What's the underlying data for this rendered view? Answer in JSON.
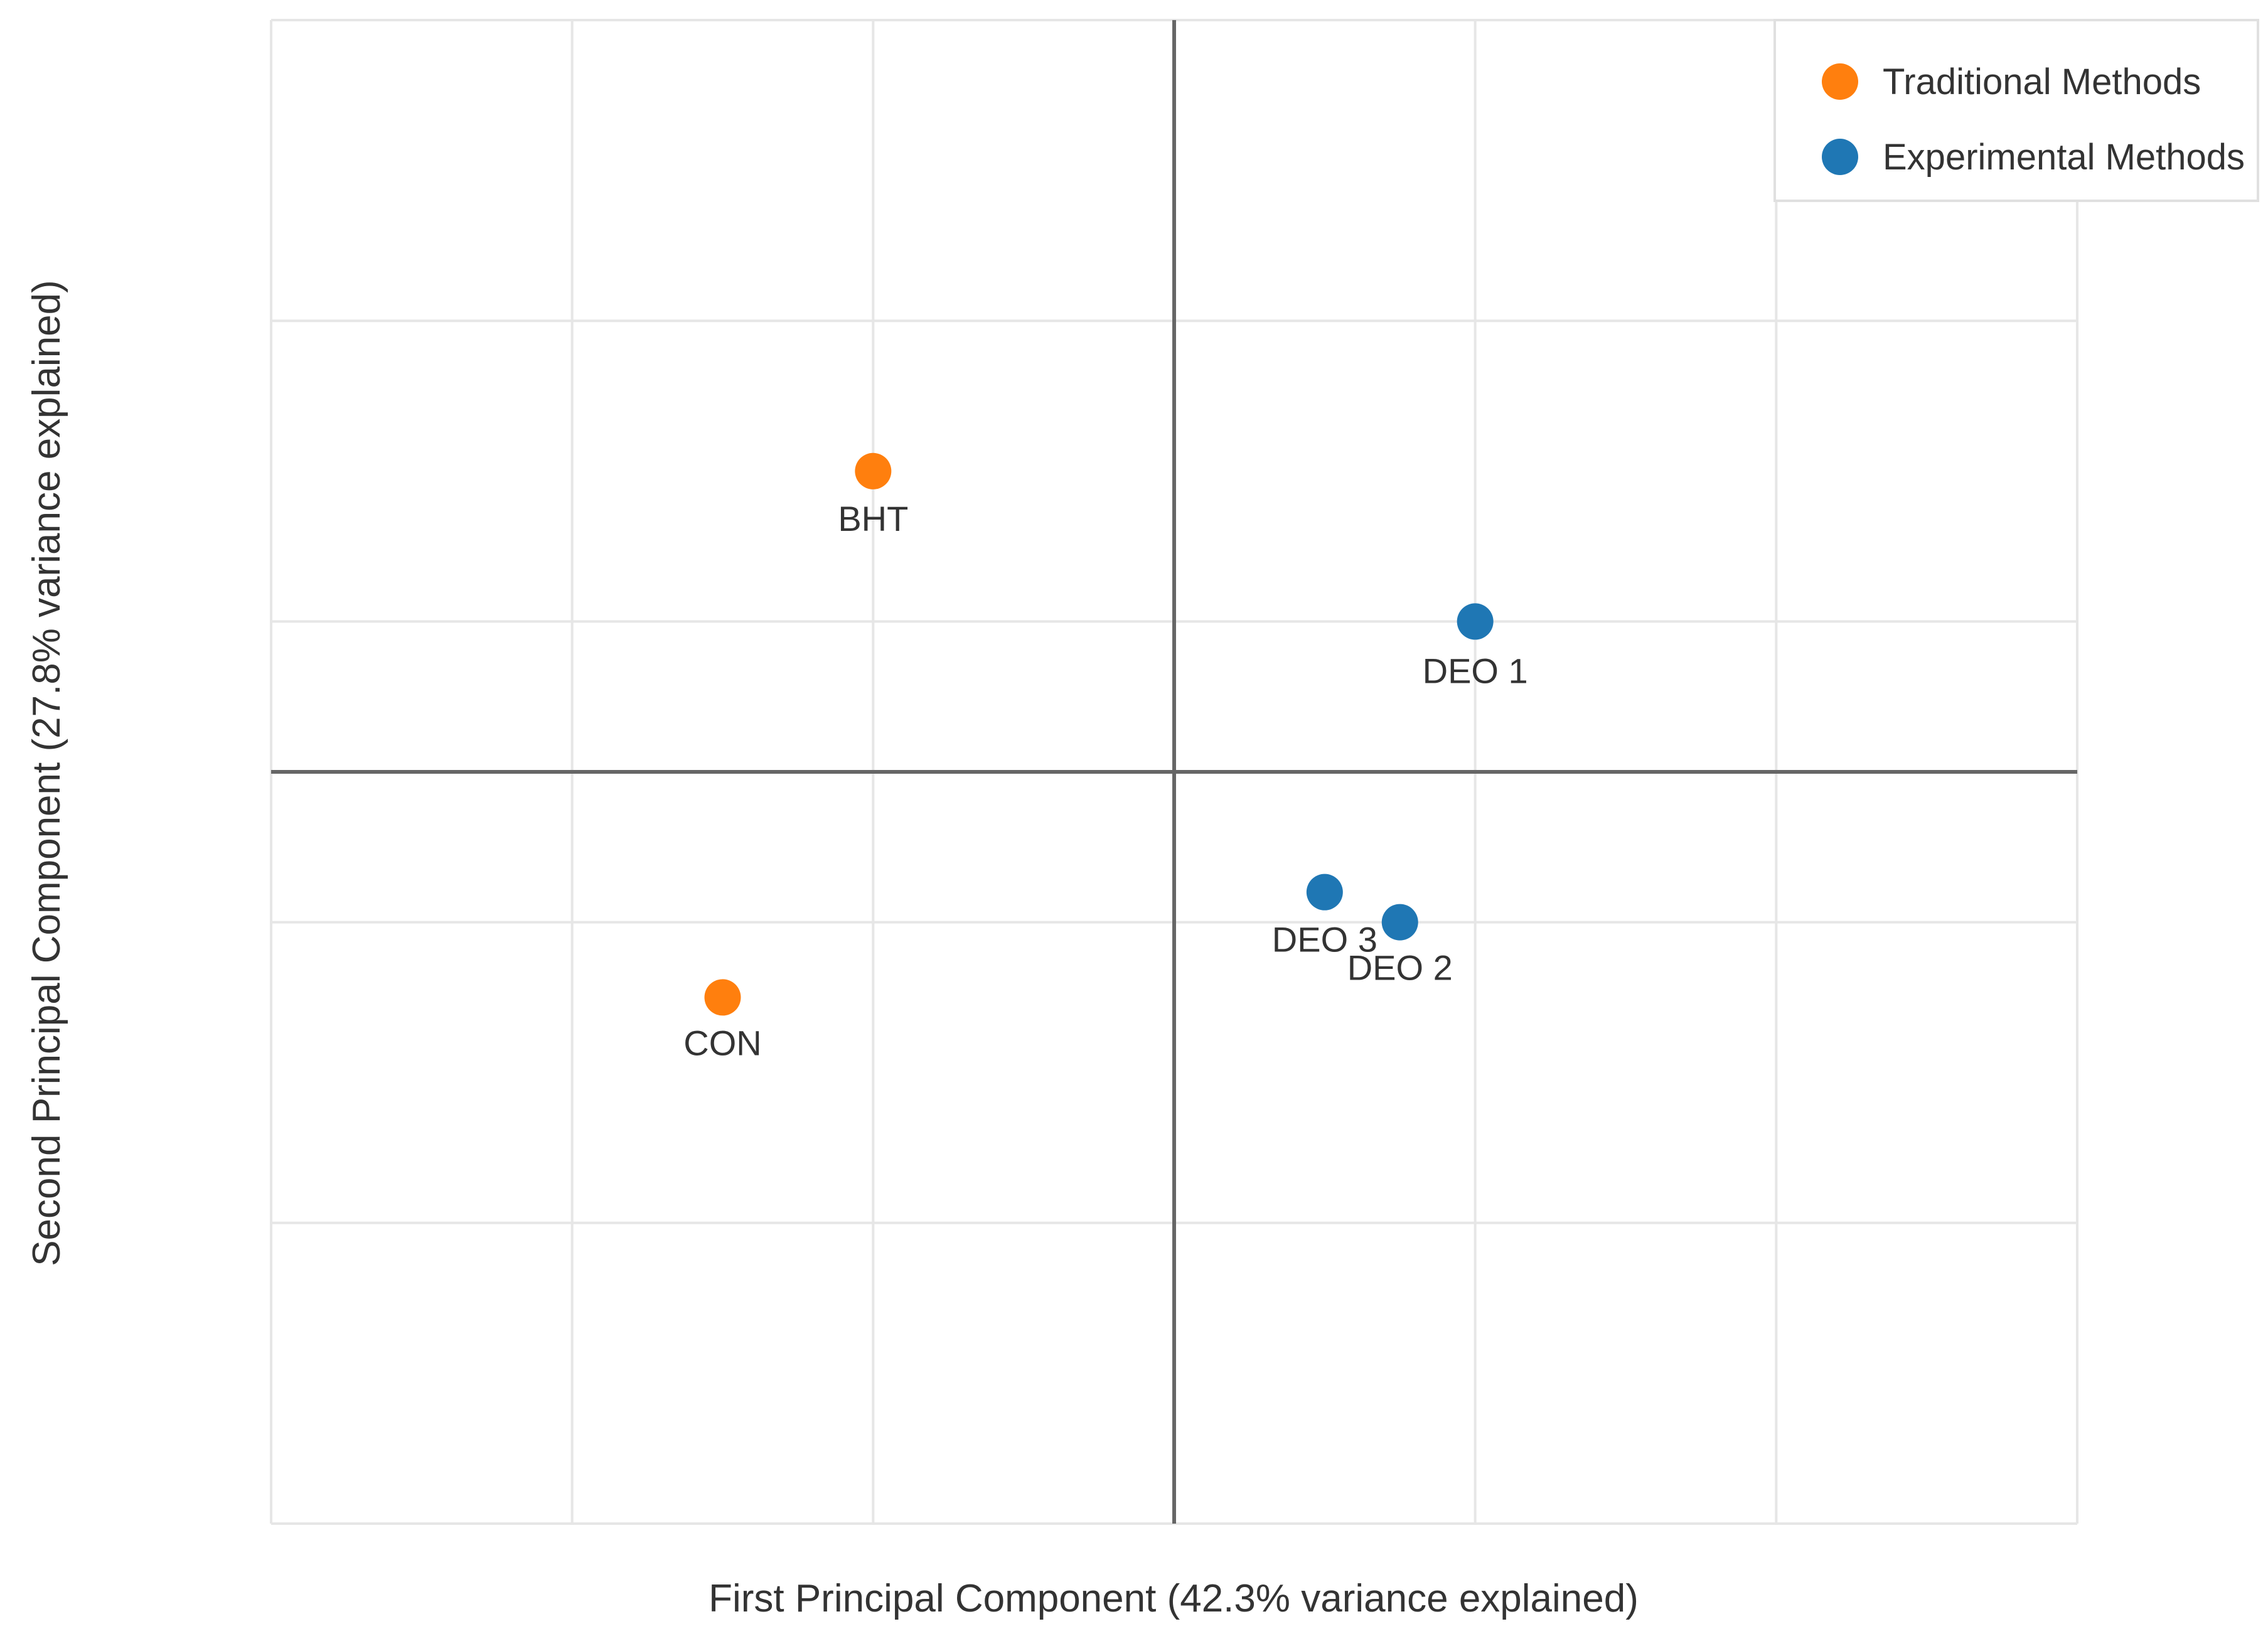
{
  "chart_data": {
    "type": "scatter",
    "title": "",
    "xlabel": "First Principal Component (42.3% variance explained)",
    "ylabel": "Second Principal Component (27.8% variance explained)",
    "xlim": [
      -3,
      3
    ],
    "ylim": [
      -2.5,
      2.5
    ],
    "x_gridlines": [
      -3,
      -2,
      -1,
      0,
      1,
      2,
      3
    ],
    "y_gridlines": [
      -2.5,
      -1.5,
      -0.5,
      0.5,
      1.5,
      2.5
    ],
    "grid": true,
    "zero_lines": true,
    "legend_position": "top-right",
    "series": [
      {
        "name": "Traditional Methods",
        "color": "#ff7f0e",
        "points": [
          {
            "label": "BHT",
            "x": -1.0,
            "y": 1.0
          },
          {
            "label": "CON",
            "x": -1.5,
            "y": -0.75
          }
        ]
      },
      {
        "name": "Experimental Methods",
        "color": "#1f77b4",
        "points": [
          {
            "label": "DEO 1",
            "x": 1.0,
            "y": 0.5
          },
          {
            "label": "DEO 3",
            "x": 0.5,
            "y": -0.4
          },
          {
            "label": "DEO 2",
            "x": 0.75,
            "y": -0.5
          }
        ]
      }
    ]
  }
}
